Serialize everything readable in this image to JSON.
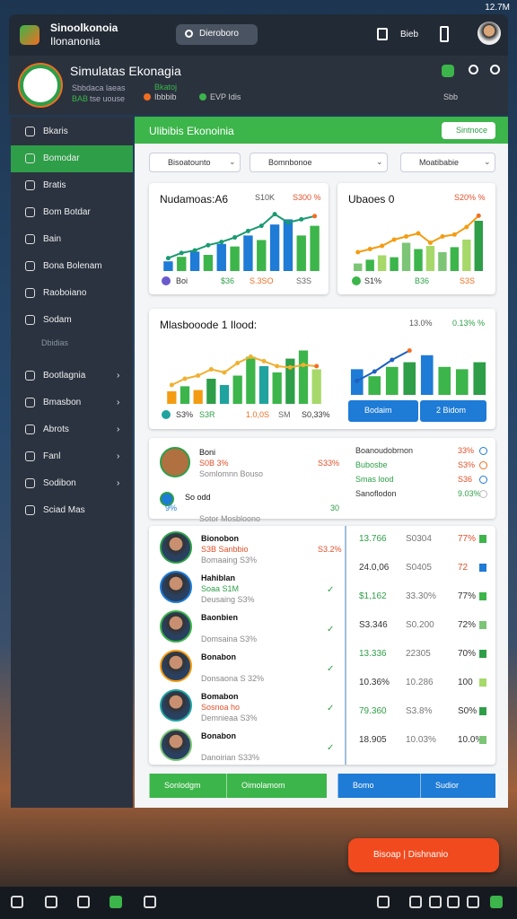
{
  "status_bar": {
    "time": "12.7M"
  },
  "top_bar": {
    "title": "Sinoolkonoia",
    "subtitle": "Ilonanonia",
    "search": "Dieroboro",
    "action": "Bieb"
  },
  "header": {
    "title": "Simulatas Ekonagia",
    "line1": "Sbbdaca laeas",
    "line2_tag": "BAB",
    "line2": "tse uouse",
    "badge": "Bkatoj",
    "stat1": "Ibbbib",
    "stat2": "EVP Idis",
    "right_label": "Sbb"
  },
  "sidebar": {
    "items_top": [
      "Bkaris",
      "Bomodar",
      "Bratis",
      "Bom Botdar",
      "Bain",
      "Bona Bolenam",
      "Raoboiano",
      "Sodam"
    ],
    "section_label": "Dbidias",
    "items_bottom": [
      "Bootlagnia",
      "Bmasbon",
      "Abrots",
      "Fanl",
      "Sodibon",
      "Sciad Mas"
    ]
  },
  "panel": {
    "title": "Ulibibis Ekonoinia",
    "button": "Sintnoce",
    "filters": [
      "Bisoatounto",
      "Bomnbonoe",
      "Moatibabie"
    ]
  },
  "cards": [
    {
      "title": "Nudamoas:A6",
      "value": "S10K",
      "change": "S300 %",
      "footer": [
        "Boi",
        "$36",
        "S.3SO",
        "S3S"
      ],
      "chart": {
        "bars": [
          15,
          22,
          30,
          25,
          42,
          38,
          55,
          48,
          72,
          80,
          55,
          70
        ],
        "colors": [
          "#1e7bd6",
          "#3cb54a",
          "#1e7bd6",
          "#3cb54a",
          "#1e7bd6",
          "#3cb54a",
          "#1e7bd6",
          "#3cb54a",
          "#1e7bd6",
          "#1e7bd6",
          "#3cb54a",
          "#3cb54a"
        ],
        "line": [
          20,
          28,
          32,
          40,
          45,
          52,
          62,
          70,
          88,
          75,
          80,
          85
        ],
        "line_color": "#1a9a70"
      }
    },
    {
      "title": "Ubaoes 0",
      "change": "S20% %",
      "footer": [
        "S1%",
        "B36",
        "S3S"
      ],
      "chart": {
        "bars": [
          12,
          18,
          25,
          22,
          45,
          35,
          40,
          30,
          38,
          50,
          80
        ],
        "colors": [
          "#7cc576",
          "#3cb54a",
          "#a6d96a",
          "#3cb54a",
          "#7cc576",
          "#3cb54a",
          "#a6d96a",
          "#7cc576",
          "#3cb54a",
          "#a6d96a",
          "#2e9e48"
        ],
        "line": [
          30,
          35,
          40,
          50,
          55,
          60,
          45,
          55,
          58,
          70,
          88
        ],
        "line_color": "#f39c12"
      }
    },
    {
      "title": "Mlasbooode 1 Ilood:",
      "value": "13.0%",
      "change": "0.13% %",
      "footer": [
        "S3%",
        "S3R",
        "1.0,0S",
        "SM",
        "S0,33%"
      ],
      "chart": {
        "bars": [
          20,
          28,
          22,
          40,
          30,
          45,
          75,
          60,
          50,
          72,
          85,
          55
        ],
        "colors": [
          "#f39c12",
          "#3cb54a",
          "#f39c12",
          "#2e9e48",
          "#20a39e",
          "#3cb54a",
          "#3cb54a",
          "#20a39e",
          "#3cb54a",
          "#2e9e48",
          "#3cb54a",
          "#a6d96a"
        ],
        "line": [
          30,
          40,
          45,
          55,
          50,
          65,
          75,
          68,
          60,
          58,
          62,
          60
        ],
        "line_color": "#f0b030"
      },
      "chart2": {
        "bars": [
          55,
          40,
          60,
          70,
          85,
          60,
          55,
          70
        ],
        "colors": [
          "#1e7bd6",
          "#3cb54a",
          "#3cb54a",
          "#2e9e48",
          "#1e7bd6",
          "#3cb54a",
          "#3cb54a",
          "#2e9e48"
        ],
        "line": [
          30,
          50,
          75,
          95
        ],
        "line_color": "#1e60c0"
      },
      "buttons": [
        "Bodaim",
        "2 Bidom"
      ]
    }
  ],
  "summary": {
    "left": [
      {
        "name": "Boni",
        "tag": "S0B 3%",
        "sub": "Somlomnn Bouso",
        "value": "S33%"
      },
      {
        "name": "So odd",
        "tag": "9%",
        "sub": "Sotor Mosbloono",
        "value": "30"
      }
    ],
    "right": [
      {
        "label": "Boanoudobrnon",
        "value": "33%"
      },
      {
        "label": "Bubosbe",
        "value": "S3%"
      },
      {
        "label": "Smas lood",
        "value": "S36"
      },
      {
        "label": "Sanoflodon",
        "value": "9.03%"
      }
    ]
  },
  "table": {
    "rows": [
      {
        "name": "Bionobon",
        "tag": "S3B Sanbbio",
        "sub": "Bomaaing S3%",
        "value": "S3.2%"
      },
      {
        "name": "Hahiblan",
        "tag": "Soaa S1M",
        "sub": "Deusaing S3%"
      },
      {
        "name": "Baonbien",
        "sub": "Domsaina S3%"
      },
      {
        "name": "Bonabon",
        "sub": "Donsaona S 32%"
      },
      {
        "name": "Bomabon",
        "tag": "Sosnoa ho",
        "sub": "Demnieaa S3%"
      },
      {
        "name": "Bonabon",
        "sub": "Danoirian S33%"
      }
    ],
    "values": [
      [
        "13.766",
        "S0304",
        "77%"
      ],
      [
        "24.0,06",
        "S0405",
        "72"
      ],
      [
        "$1,162",
        "33.30%",
        "77%"
      ],
      [
        "S3.346",
        "S0.200",
        "72%"
      ],
      [
        "13.336",
        "22305",
        "70%"
      ],
      [
        "10.36%",
        "10.286",
        "100"
      ],
      [
        "79.360",
        "S3.8%",
        "S0%"
      ],
      [
        "18.905",
        "10.03%",
        "10.0%"
      ]
    ]
  },
  "actions": [
    "Sonlodgm",
    "Oimolamom",
    "Bomo",
    "Sudior"
  ],
  "fab": "Bisoap | Dishnanio"
}
